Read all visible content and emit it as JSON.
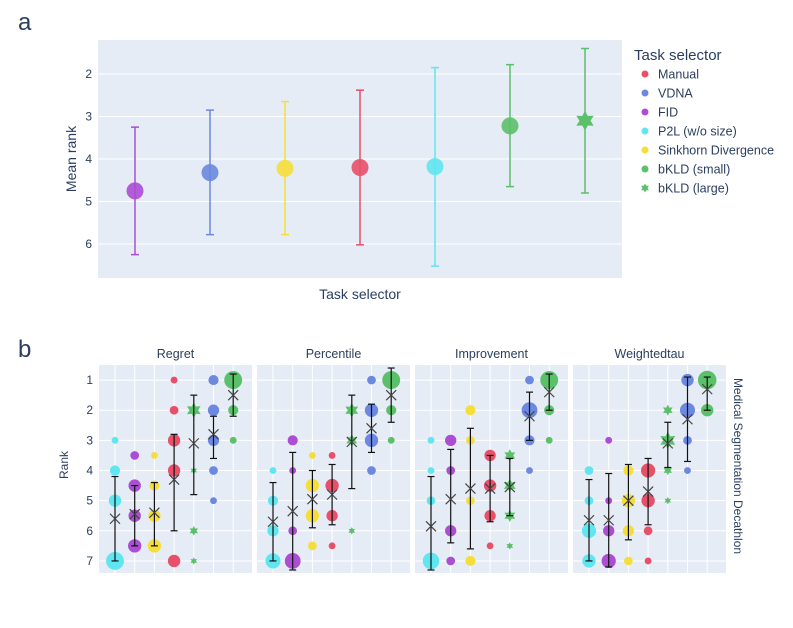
{
  "panel_a": {
    "label": "a",
    "chart_data": {
      "type": "scatter",
      "xlabel": "Task selector",
      "ylabel": "Mean rank",
      "ylim": [
        6.8,
        1.2
      ],
      "yticks": [
        2,
        3,
        4,
        5,
        6
      ],
      "legend_title": "Task selector",
      "legend_position": "right",
      "points": [
        {
          "name": "FID",
          "mean": 4.75,
          "low": 3.25,
          "high": 6.25
        },
        {
          "name": "VDNA",
          "mean": 4.32,
          "low": 2.85,
          "high": 5.78
        },
        {
          "name": "Sinkhorn Divergence",
          "mean": 4.22,
          "low": 2.65,
          "high": 5.78
        },
        {
          "name": "Manual",
          "mean": 4.2,
          "low": 2.38,
          "high": 6.02
        },
        {
          "name": "P2L (w/o size)",
          "mean": 4.18,
          "low": 1.85,
          "high": 6.52
        },
        {
          "name": "bKLD (small)",
          "mean": 3.22,
          "low": 1.78,
          "high": 4.65
        },
        {
          "name": "bKLD (large)",
          "mean": 3.1,
          "low": 1.4,
          "high": 4.8
        }
      ]
    },
    "legend": [
      {
        "name": "Manual",
        "color": "#e8506a",
        "symbol": "circle"
      },
      {
        "name": "VDNA",
        "color": "#6c88e0",
        "symbol": "circle"
      },
      {
        "name": "FID",
        "color": "#ab4ed4",
        "symbol": "circle"
      },
      {
        "name": "P2L (w/o size)",
        "color": "#60e6f0",
        "symbol": "circle"
      },
      {
        "name": "Sinkhorn Divergence",
        "color": "#f5de3c",
        "symbol": "circle"
      },
      {
        "name": "bKLD (small)",
        "color": "#5bc06a",
        "symbol": "circle"
      },
      {
        "name": "bKLD (large)",
        "color": "#5bc06a",
        "symbol": "star"
      }
    ]
  },
  "panel_b": {
    "label": "b",
    "chart_data": {
      "type": "scatter",
      "ylabel": "Rank",
      "row_label": "Medical Segmentation Decathlon",
      "ylim": [
        7.4,
        0.5
      ],
      "yticks": [
        1,
        2,
        3,
        4,
        5,
        6,
        7
      ],
      "method_order": [
        "P2L (w/o size)",
        "FID",
        "Sinkhorn Divergence",
        "Manual",
        "bKLD (large)",
        "VDNA",
        "bKLD (small)"
      ],
      "facets": [
        {
          "title": "Regret",
          "stats": [
            {
              "mean": 5.6,
              "low": 4.2,
              "high": 7.0
            },
            {
              "mean": 5.45,
              "low": 4.5,
              "high": 6.5
            },
            {
              "mean": 5.4,
              "low": 4.4,
              "high": 6.5
            },
            {
              "mean": 4.3,
              "low": 2.8,
              "high": 6.0
            },
            {
              "mean": 3.1,
              "low": 1.5,
              "high": 4.8
            },
            {
              "mean": 2.8,
              "low": 2.2,
              "high": 3.6
            },
            {
              "mean": 1.5,
              "low": 0.8,
              "high": 2.2
            }
          ],
          "dots": [
            {
              "m": 0,
              "rank": 7,
              "frac": 0.6
            },
            {
              "m": 0,
              "rank": 5,
              "frac": 0.25
            },
            {
              "m": 0,
              "rank": 4,
              "frac": 0.15
            },
            {
              "m": 0,
              "rank": 3,
              "frac": 0.05
            },
            {
              "m": 1,
              "rank": 6.5,
              "frac": 0.3
            },
            {
              "m": 1,
              "rank": 5.5,
              "frac": 0.25
            },
            {
              "m": 1,
              "rank": 4.5,
              "frac": 0.25
            },
            {
              "m": 1,
              "rank": 3.5,
              "frac": 0.1
            },
            {
              "m": 2,
              "rank": 6.5,
              "frac": 0.3
            },
            {
              "m": 2,
              "rank": 5.5,
              "frac": 0.25
            },
            {
              "m": 2,
              "rank": 4.5,
              "frac": 0.15
            },
            {
              "m": 2,
              "rank": 3.5,
              "frac": 0.05
            },
            {
              "m": 3,
              "rank": 7,
              "frac": 0.25
            },
            {
              "m": 3,
              "rank": 4,
              "frac": 0.25
            },
            {
              "m": 3,
              "rank": 3,
              "frac": 0.25
            },
            {
              "m": 3,
              "rank": 2,
              "frac": 0.1
            },
            {
              "m": 3,
              "rank": 1,
              "frac": 0.05
            },
            {
              "m": 4,
              "rank": 2,
              "frac": 0.35
            },
            {
              "m": 4,
              "rank": 6,
              "frac": 0.1
            },
            {
              "m": 4,
              "rank": 7,
              "frac": 0.05
            },
            {
              "m": 4,
              "rank": 4,
              "frac": 0.05
            },
            {
              "m": 5,
              "rank": 1,
              "frac": 0.15
            },
            {
              "m": 5,
              "rank": 2,
              "frac": 0.2
            },
            {
              "m": 5,
              "rank": 3,
              "frac": 0.2
            },
            {
              "m": 5,
              "rank": 4,
              "frac": 0.1
            },
            {
              "m": 5,
              "rank": 5,
              "frac": 0.05
            },
            {
              "m": 6,
              "rank": 1,
              "frac": 0.6
            },
            {
              "m": 6,
              "rank": 2,
              "frac": 0.15
            },
            {
              "m": 6,
              "rank": 3,
              "frac": 0.05
            }
          ]
        },
        {
          "title": "Percentile",
          "stats": [
            {
              "mean": 5.7,
              "low": 4.4,
              "high": 7.0
            },
            {
              "mean": 5.35,
              "low": 3.4,
              "high": 7.3
            },
            {
              "mean": 4.95,
              "low": 4.0,
              "high": 5.9
            },
            {
              "mean": 4.8,
              "low": 3.8,
              "high": 5.8
            },
            {
              "mean": 3.05,
              "low": 1.5,
              "high": 4.6
            },
            {
              "mean": 2.6,
              "low": 1.8,
              "high": 3.4
            },
            {
              "mean": 1.5,
              "low": 0.6,
              "high": 2.4
            }
          ],
          "dots": [
            {
              "m": 0,
              "rank": 7,
              "frac": 0.4
            },
            {
              "m": 0,
              "rank": 6,
              "frac": 0.2
            },
            {
              "m": 0,
              "rank": 5,
              "frac": 0.15
            },
            {
              "m": 0,
              "rank": 4,
              "frac": 0.05
            },
            {
              "m": 1,
              "rank": 7,
              "frac": 0.45
            },
            {
              "m": 1,
              "rank": 6,
              "frac": 0.1
            },
            {
              "m": 1,
              "rank": 4,
              "frac": 0.05
            },
            {
              "m": 1,
              "rank": 3,
              "frac": 0.15
            },
            {
              "m": 2,
              "rank": 6.5,
              "frac": 0.1
            },
            {
              "m": 2,
              "rank": 5.5,
              "frac": 0.3
            },
            {
              "m": 2,
              "rank": 4.5,
              "frac": 0.3
            },
            {
              "m": 2,
              "rank": 3.5,
              "frac": 0.05
            },
            {
              "m": 3,
              "rank": 6.5,
              "frac": 0.05
            },
            {
              "m": 3,
              "rank": 5.5,
              "frac": 0.2
            },
            {
              "m": 3,
              "rank": 4.5,
              "frac": 0.3
            },
            {
              "m": 3,
              "rank": 3.5,
              "frac": 0.05
            },
            {
              "m": 4,
              "rank": 2,
              "frac": 0.3
            },
            {
              "m": 4,
              "rank": 3,
              "frac": 0.2
            },
            {
              "m": 4,
              "rank": 6,
              "frac": 0.05
            },
            {
              "m": 5,
              "rank": 1,
              "frac": 0.1
            },
            {
              "m": 5,
              "rank": 2,
              "frac": 0.3
            },
            {
              "m": 5,
              "rank": 3,
              "frac": 0.3
            },
            {
              "m": 5,
              "rank": 4,
              "frac": 0.1
            },
            {
              "m": 6,
              "rank": 1,
              "frac": 0.6
            },
            {
              "m": 6,
              "rank": 2,
              "frac": 0.15
            },
            {
              "m": 6,
              "rank": 3,
              "frac": 0.05
            }
          ]
        },
        {
          "title": "Improvement",
          "stats": [
            {
              "mean": 5.85,
              "low": 4.2,
              "high": 7.3
            },
            {
              "mean": 4.95,
              "low": 3.3,
              "high": 6.4
            },
            {
              "mean": 4.6,
              "low": 2.6,
              "high": 6.6
            },
            {
              "mean": 4.6,
              "low": 3.5,
              "high": 5.7
            },
            {
              "mean": 4.55,
              "low": 3.6,
              "high": 5.5
            },
            {
              "mean": 2.2,
              "low": 1.4,
              "high": 3.0
            },
            {
              "mean": 1.4,
              "low": 0.8,
              "high": 2.0
            }
          ],
          "dots": [
            {
              "m": 0,
              "rank": 7,
              "frac": 0.5
            },
            {
              "m": 0,
              "rank": 5,
              "frac": 0.1
            },
            {
              "m": 0,
              "rank": 4,
              "frac": 0.05
            },
            {
              "m": 0,
              "rank": 3,
              "frac": 0.05
            },
            {
              "m": 1,
              "rank": 7,
              "frac": 0.1
            },
            {
              "m": 1,
              "rank": 6,
              "frac": 0.2
            },
            {
              "m": 1,
              "rank": 4,
              "frac": 0.1
            },
            {
              "m": 1,
              "rank": 3,
              "frac": 0.2
            },
            {
              "m": 2,
              "rank": 7,
              "frac": 0.15
            },
            {
              "m": 2,
              "rank": 5,
              "frac": 0.1
            },
            {
              "m": 2,
              "rank": 3,
              "frac": 0.1
            },
            {
              "m": 2,
              "rank": 2,
              "frac": 0.15
            },
            {
              "m": 3,
              "rank": 5.5,
              "frac": 0.2
            },
            {
              "m": 3,
              "rank": 4.5,
              "frac": 0.25
            },
            {
              "m": 3,
              "rank": 3.5,
              "frac": 0.2
            },
            {
              "m": 3,
              "rank": 6.5,
              "frac": 0.05
            },
            {
              "m": 4,
              "rank": 5.5,
              "frac": 0.2
            },
            {
              "m": 4,
              "rank": 4.5,
              "frac": 0.25
            },
            {
              "m": 4,
              "rank": 3.5,
              "frac": 0.2
            },
            {
              "m": 4,
              "rank": 6.5,
              "frac": 0.05
            },
            {
              "m": 5,
              "rank": 1,
              "frac": 0.1
            },
            {
              "m": 5,
              "rank": 2,
              "frac": 0.45
            },
            {
              "m": 5,
              "rank": 3,
              "frac": 0.15
            },
            {
              "m": 5,
              "rank": 4,
              "frac": 0.05
            },
            {
              "m": 6,
              "rank": 1,
              "frac": 0.6
            },
            {
              "m": 6,
              "rank": 2,
              "frac": 0.15
            },
            {
              "m": 6,
              "rank": 3,
              "frac": 0.05
            }
          ]
        },
        {
          "title": "Weightedtau",
          "stats": [
            {
              "mean": 5.65,
              "low": 4.3,
              "high": 7.0
            },
            {
              "mean": 5.65,
              "low": 4.1,
              "high": 7.2
            },
            {
              "mean": 5.0,
              "low": 3.8,
              "high": 6.3
            },
            {
              "mean": 4.7,
              "low": 3.6,
              "high": 5.8
            },
            {
              "mean": 3.1,
              "low": 2.4,
              "high": 3.9
            },
            {
              "mean": 2.3,
              "low": 0.9,
              "high": 3.7
            },
            {
              "mean": 1.3,
              "low": 0.9,
              "high": 2.0
            }
          ],
          "dots": [
            {
              "m": 0,
              "rank": 7,
              "frac": 0.3
            },
            {
              "m": 0,
              "rank": 6,
              "frac": 0.35
            },
            {
              "m": 0,
              "rank": 4,
              "frac": 0.1
            },
            {
              "m": 0,
              "rank": 5,
              "frac": 0.1
            },
            {
              "m": 1,
              "rank": 7,
              "frac": 0.35
            },
            {
              "m": 1,
              "rank": 6,
              "frac": 0.2
            },
            {
              "m": 1,
              "rank": 5,
              "frac": 0.05
            },
            {
              "m": 1,
              "rank": 3,
              "frac": 0.05
            },
            {
              "m": 2,
              "rank": 7,
              "frac": 0.1
            },
            {
              "m": 2,
              "rank": 6,
              "frac": 0.2
            },
            {
              "m": 2,
              "rank": 5,
              "frac": 0.3
            },
            {
              "m": 2,
              "rank": 4,
              "frac": 0.15
            },
            {
              "m": 3,
              "rank": 7,
              "frac": 0.05
            },
            {
              "m": 3,
              "rank": 6,
              "frac": 0.1
            },
            {
              "m": 3,
              "rank": 5,
              "frac": 0.3
            },
            {
              "m": 3,
              "rank": 4,
              "frac": 0.35
            },
            {
              "m": 4,
              "rank": 3,
              "frac": 0.45
            },
            {
              "m": 4,
              "rank": 2,
              "frac": 0.15
            },
            {
              "m": 4,
              "rank": 4,
              "frac": 0.1
            },
            {
              "m": 4,
              "rank": 5,
              "frac": 0.05
            },
            {
              "m": 5,
              "rank": 1,
              "frac": 0.25
            },
            {
              "m": 5,
              "rank": 2,
              "frac": 0.4
            },
            {
              "m": 5,
              "rank": 3,
              "frac": 0.1
            },
            {
              "m": 5,
              "rank": 4,
              "frac": 0.05
            },
            {
              "m": 6,
              "rank": 1,
              "frac": 0.65
            },
            {
              "m": 6,
              "rank": 2,
              "frac": 0.25
            }
          ]
        }
      ]
    }
  }
}
